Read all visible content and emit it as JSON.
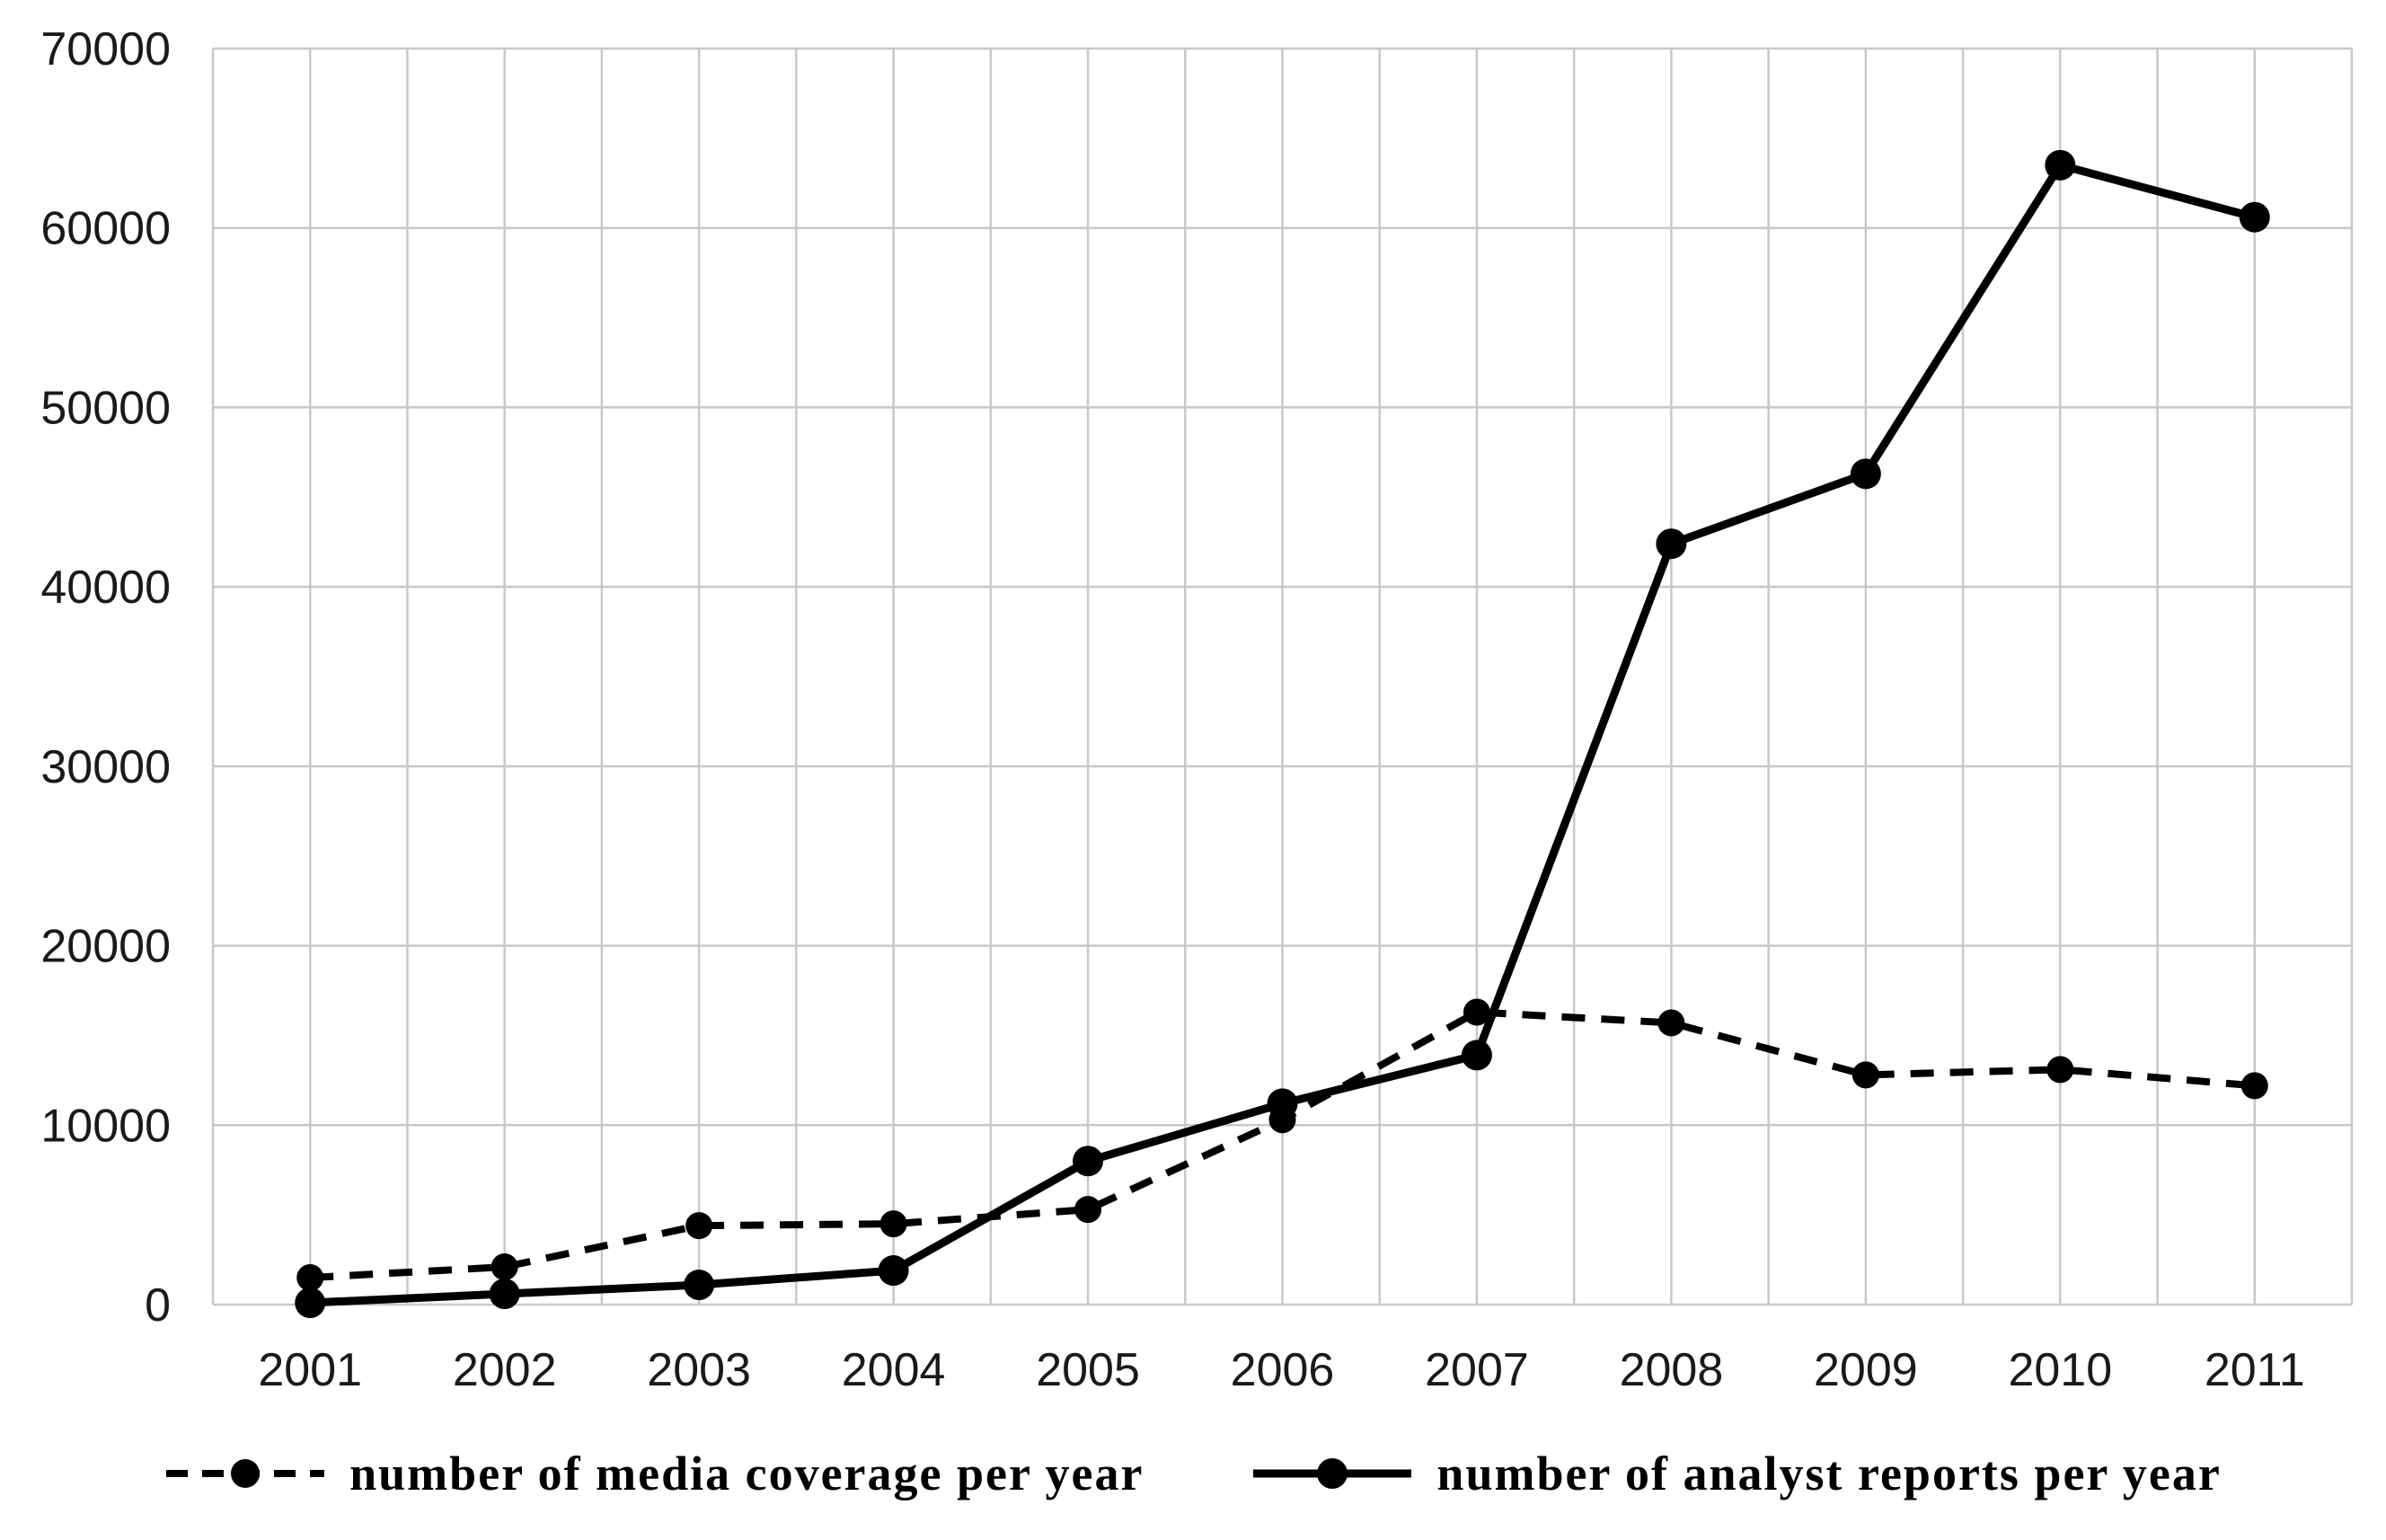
{
  "chart_data": {
    "type": "line",
    "title": "",
    "xlabel": "",
    "ylabel": "",
    "categories": [
      "2001",
      "2002",
      "2003",
      "2004",
      "2005",
      "2006",
      "2007",
      "2008",
      "2009",
      "2010",
      "2011"
    ],
    "series": [
      {
        "name": "number of media coverage per year",
        "line_style": "dashed",
        "marker": "filled-circle",
        "color": "#000000",
        "values": [
          1500,
          2100,
          4400,
          4500,
          5300,
          10300,
          16300,
          15700,
          12800,
          13100,
          12200
        ]
      },
      {
        "name": "number of analyst reports per year",
        "line_style": "solid",
        "marker": "filled-circle",
        "color": "#000000",
        "values": [
          100,
          600,
          1100,
          1900,
          8000,
          11200,
          13900,
          42400,
          46300,
          63500,
          60600
        ]
      }
    ],
    "ylim": [
      0,
      70000
    ],
    "y_ticks": [
      0,
      10000,
      20000,
      30000,
      40000,
      50000,
      60000,
      70000
    ],
    "grid": {
      "horizontal_gridlines": "every 10000",
      "vertical_gridlines": "every half category",
      "color": "#c8c8c8"
    },
    "legend_position": "bottom",
    "background": "#ffffff",
    "text_color": "#1a1a1a"
  }
}
